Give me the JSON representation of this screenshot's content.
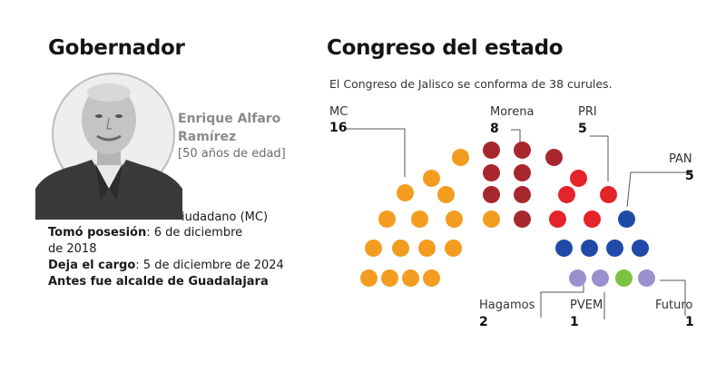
{
  "governor": {
    "title": "Gobernador",
    "name_line1": "Enrique Alfaro",
    "name_line2": "Ramírez",
    "age": "[50 años de edad]",
    "party": "iudadano (MC)",
    "took_office_label": "Tomó posesión",
    "took_office_value_1": ": 6 de diciembre",
    "took_office_value_2": "de 2018",
    "leaves_label": "Deja el cargo",
    "leaves_value": ": 5 de diciembre de 2024",
    "previous": "Antes fue alcalde de Guadalajara"
  },
  "congress": {
    "title": "Congreso del estado",
    "description": "El Congreso de Jalisco se conforma de 38 curules.",
    "parties": [
      {
        "key": "mc",
        "name": "MC",
        "seats": "16",
        "color": "#f39c1f"
      },
      {
        "key": "morena",
        "name": "Morena",
        "seats": "8",
        "color": "#a8272e"
      },
      {
        "key": "pri",
        "name": "PRI",
        "seats": "5",
        "color": "#e5232b"
      },
      {
        "key": "pan",
        "name": "PAN",
        "seats": "5",
        "color": "#1f4aa8"
      },
      {
        "key": "hagamos",
        "name": "Hagamos",
        "seats": "2",
        "color": "#9c8fce"
      },
      {
        "key": "pvem",
        "name": "PVEM",
        "seats": "1",
        "color": "#7cc242"
      },
      {
        "key": "futuro",
        "name": "Futuro",
        "seats": "1",
        "color": "#9c8fce"
      }
    ]
  }
}
